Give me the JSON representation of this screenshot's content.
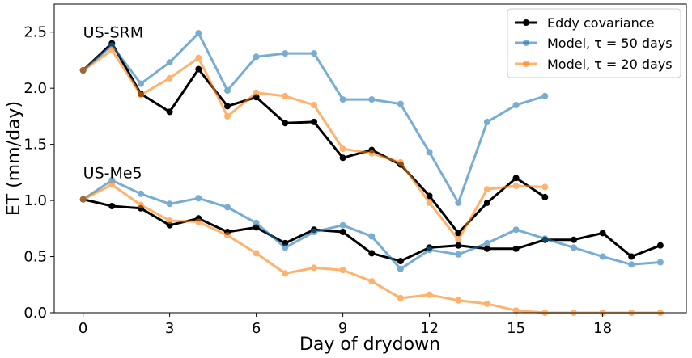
{
  "chart_data": {
    "type": "line",
    "title": "",
    "xlabel": "Day of drydown",
    "ylabel": "ET (mm/day)",
    "xlim": [
      -1,
      20.9
    ],
    "ylim": [
      0,
      2.75
    ],
    "xticks": [
      0,
      3,
      6,
      9,
      12,
      15,
      18
    ],
    "yticks": [
      0.0,
      0.5,
      1.0,
      1.5,
      2.0,
      2.5
    ],
    "ytick_labels": [
      "0.0",
      "0.5",
      "1.0",
      "1.5",
      "2.0",
      "2.5"
    ],
    "grid": false,
    "legend_position": "top-right",
    "legend": [
      {
        "label": "Eddy covariance",
        "color": "#000000"
      },
      {
        "label": "Model, τ = 50 days",
        "color": "#1f77b4"
      },
      {
        "label": "Model, τ = 20 days",
        "color": "#ff7f0e"
      }
    ],
    "annotations": [
      {
        "text": "US-SRM",
        "x": 0,
        "y": 2.5
      },
      {
        "text": "US-Me5",
        "x": 0,
        "y": 1.25
      }
    ],
    "series": [
      {
        "site": "US-SRM",
        "legend_index": 0,
        "color": "#000000",
        "x": [
          0,
          1,
          2,
          3,
          4,
          5,
          6,
          7,
          8,
          9,
          10,
          11,
          12,
          13,
          14,
          15,
          16
        ],
        "y": [
          2.16,
          2.4,
          1.95,
          1.79,
          2.17,
          1.84,
          1.92,
          1.69,
          1.7,
          1.38,
          1.45,
          1.32,
          1.04,
          0.71,
          0.98,
          1.2,
          1.03
        ]
      },
      {
        "site": "US-SRM",
        "legend_index": 1,
        "color": "#1f77b4",
        "x": [
          0,
          1,
          2,
          3,
          4,
          5,
          6,
          7,
          8,
          9,
          10,
          11,
          12,
          13,
          14,
          15,
          16
        ],
        "y": [
          2.16,
          2.38,
          2.04,
          2.23,
          2.49,
          1.98,
          2.28,
          2.31,
          2.31,
          1.9,
          1.9,
          1.86,
          1.43,
          0.98,
          1.7,
          1.85,
          1.93
        ]
      },
      {
        "site": "US-SRM",
        "legend_index": 2,
        "color": "#ff7f0e",
        "x": [
          0,
          1,
          2,
          3,
          4,
          5,
          6,
          7,
          8,
          9,
          10,
          11,
          12,
          13,
          14,
          15,
          16
        ],
        "y": [
          2.16,
          2.34,
          1.94,
          2.09,
          2.27,
          1.75,
          1.96,
          1.93,
          1.85,
          1.46,
          1.42,
          1.34,
          0.98,
          0.65,
          1.1,
          1.13,
          1.12
        ]
      },
      {
        "site": "US-Me5",
        "legend_index": 0,
        "color": "#000000",
        "x": [
          0,
          1,
          2,
          3,
          4,
          5,
          6,
          7,
          8,
          9,
          10,
          11,
          12,
          13,
          14,
          15,
          16,
          17,
          18,
          19,
          20
        ],
        "y": [
          1.01,
          0.95,
          0.93,
          0.78,
          0.84,
          0.72,
          0.76,
          0.62,
          0.74,
          0.72,
          0.53,
          0.46,
          0.58,
          0.6,
          0.57,
          0.57,
          0.65,
          0.65,
          0.71,
          0.5,
          0.6
        ]
      },
      {
        "site": "US-Me5",
        "legend_index": 1,
        "color": "#1f77b4",
        "x": [
          0,
          1,
          2,
          3,
          4,
          5,
          6,
          7,
          8,
          9,
          10,
          11,
          12,
          13,
          14,
          15,
          16,
          17,
          18,
          19,
          20
        ],
        "y": [
          1.01,
          1.18,
          1.06,
          0.97,
          1.02,
          0.94,
          0.8,
          0.58,
          0.72,
          0.78,
          0.68,
          0.39,
          0.56,
          0.52,
          0.62,
          0.74,
          0.66,
          0.58,
          0.5,
          0.43,
          0.45
        ]
      },
      {
        "site": "US-Me5",
        "legend_index": 2,
        "color": "#ff7f0e",
        "x": [
          0,
          1,
          2,
          3,
          4,
          5,
          6,
          7,
          8,
          9,
          10,
          11,
          12,
          13,
          14,
          15,
          16,
          17,
          18,
          19,
          20
        ],
        "y": [
          1.01,
          1.14,
          0.96,
          0.82,
          0.81,
          0.69,
          0.53,
          0.35,
          0.4,
          0.38,
          0.28,
          0.13,
          0.16,
          0.11,
          0.08,
          0.02,
          0.0,
          0.0,
          0.0,
          0.0,
          0.0
        ]
      }
    ]
  }
}
